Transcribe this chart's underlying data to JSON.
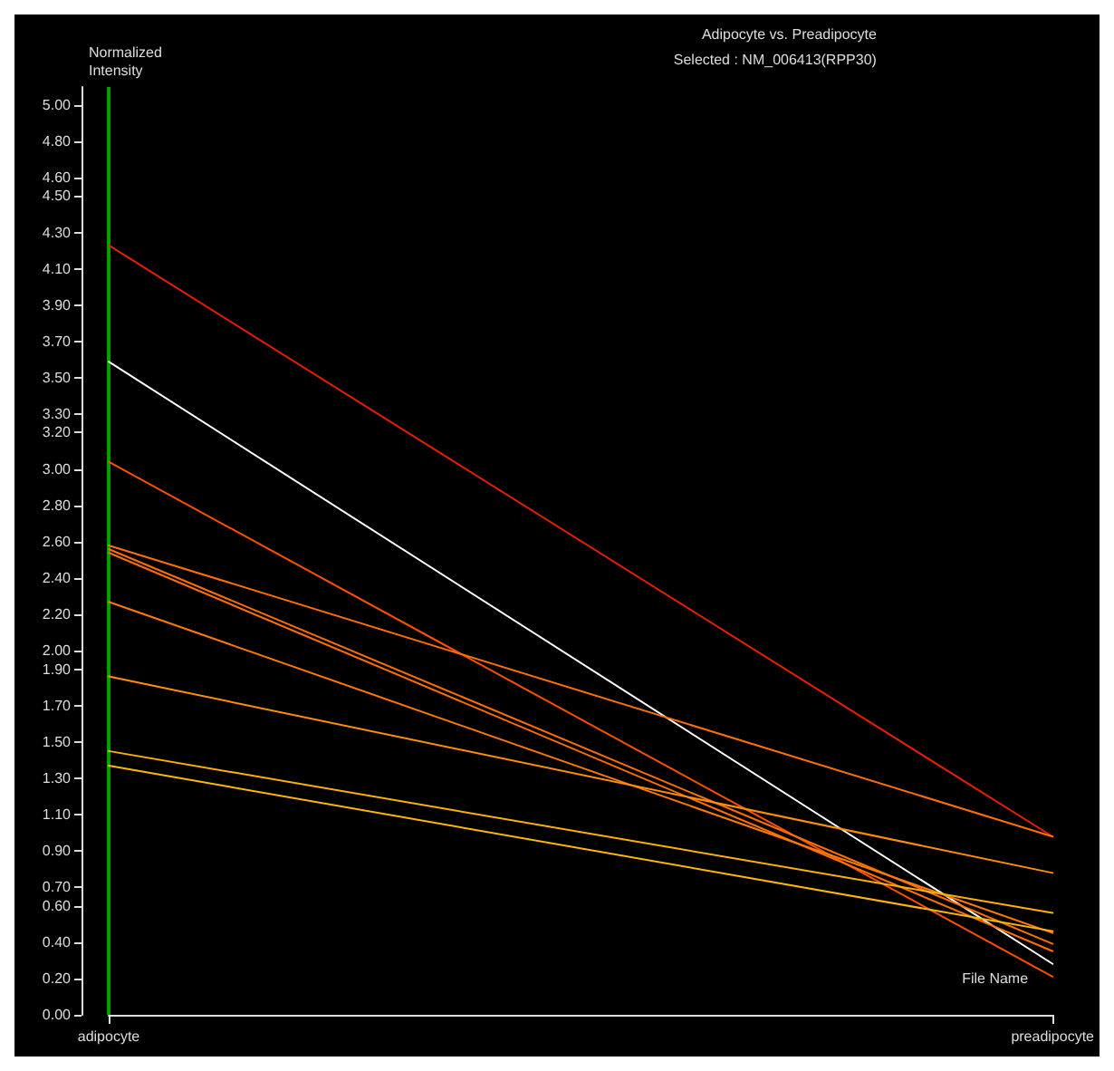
{
  "chart_data": {
    "type": "line",
    "title": "Adipocyte vs. Preadipocyte",
    "subtitle": "Selected : NM_006413(RPP30)",
    "xlabel": "File Name",
    "ylabel": "Normalized\nIntensity",
    "categories": [
      "adipocyte",
      "preadipocyte"
    ],
    "ylim": [
      0,
      5.1
    ],
    "yticks": [
      {
        "value": 0,
        "label": "0.00"
      },
      {
        "value": 0.2,
        "label": "0.20"
      },
      {
        "value": 0.4,
        "label": "0.40"
      },
      {
        "value": 0.6,
        "label": "0.60"
      },
      {
        "value": 0.7,
        "label": "0.70"
      },
      {
        "value": 0.9,
        "label": "0.90"
      },
      {
        "value": 1.1,
        "label": "1.10"
      },
      {
        "value": 1.3,
        "label": "1.30"
      },
      {
        "value": 1.5,
        "label": "1.50"
      },
      {
        "value": 1.7,
        "label": "1.70"
      },
      {
        "value": 1.9,
        "label": "1.90"
      },
      {
        "value": 2.0,
        "label": "2.00"
      },
      {
        "value": 2.2,
        "label": "2.20"
      },
      {
        "value": 2.4,
        "label": "2.40"
      },
      {
        "value": 2.6,
        "label": "2.60"
      },
      {
        "value": 2.8,
        "label": "2.80"
      },
      {
        "value": 3.0,
        "label": "3.00"
      },
      {
        "value": 3.2,
        "label": "3.20"
      },
      {
        "value": 3.3,
        "label": "3.30"
      },
      {
        "value": 3.5,
        "label": "3.50"
      },
      {
        "value": 3.7,
        "label": "3.70"
      },
      {
        "value": 3.9,
        "label": "3.90"
      },
      {
        "value": 4.1,
        "label": "4.10"
      },
      {
        "value": 4.3,
        "label": "4.30"
      },
      {
        "value": 4.5,
        "label": "4.50"
      },
      {
        "value": 4.6,
        "label": "4.60"
      },
      {
        "value": 4.8,
        "label": "4.80"
      },
      {
        "value": 5.0,
        "label": "5.00"
      }
    ],
    "grid": false,
    "marker": "none",
    "line_style": "solid",
    "ref_lines": [
      {
        "axis": "x",
        "value": "adipocyte",
        "color": "#00a000"
      }
    ],
    "series": [
      {
        "color": "#e82000",
        "values": [
          4.23,
          0.98
        ]
      },
      {
        "color": "#ffffff",
        "values": [
          3.59,
          0.28
        ]
      },
      {
        "color": "#ff5000",
        "values": [
          3.04,
          0.21
        ]
      },
      {
        "color": "#ff7000",
        "values": [
          2.58,
          0.98
        ]
      },
      {
        "color": "#ff7000",
        "values": [
          2.56,
          0.39
        ]
      },
      {
        "color": "#ff7000",
        "values": [
          2.54,
          0.35
        ]
      },
      {
        "color": "#ff7a00",
        "values": [
          2.27,
          0.45
        ]
      },
      {
        "color": "#ff9000",
        "values": [
          1.86,
          0.78
        ]
      },
      {
        "color": "#ffb000",
        "values": [
          1.45,
          0.56
        ]
      },
      {
        "color": "#ffb800",
        "values": [
          1.37,
          0.46
        ]
      }
    ]
  }
}
